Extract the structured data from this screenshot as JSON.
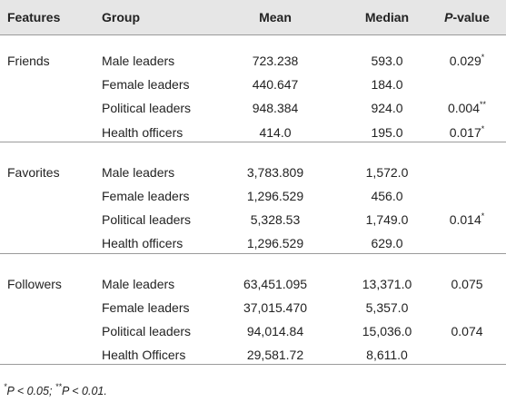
{
  "table": {
    "header": [
      "Features",
      "Group",
      "Mean",
      "Median",
      {
        "italic": "P",
        "rest": "-value"
      }
    ],
    "groups": [
      {
        "feature": "Friends",
        "rows": [
          {
            "group": "Male leaders",
            "mean": "723.238",
            "median": "593.0",
            "p": {
              "text": "0.029",
              "sup": "*"
            }
          },
          {
            "group": "Female leaders",
            "mean": "440.647",
            "median": "184.0"
          },
          {
            "group": "Political leaders",
            "mean": "948.384",
            "median": "924.0",
            "p": {
              "text": "0.004",
              "sup": "**"
            }
          },
          {
            "group": "Health officers",
            "mean": "414.0",
            "median": "195.0",
            "p": {
              "text": "0.017",
              "sup": "*"
            }
          }
        ]
      },
      {
        "feature": "Favorites",
        "rows": [
          {
            "group": "Male leaders",
            "mean": "3,783.809",
            "median": "1,572.0"
          },
          {
            "group": "Female leaders",
            "mean": "1,296.529",
            "median": "456.0"
          },
          {
            "group": "Political leaders",
            "mean": "5,328.53",
            "median": "1,749.0",
            "p": {
              "text": "0.014",
              "sup": "*"
            }
          },
          {
            "group": "Health officers",
            "mean": "1,296.529",
            "median": "629.0"
          }
        ]
      },
      {
        "feature": "Followers",
        "rows": [
          {
            "group": "Male leaders",
            "mean": "63,451.095",
            "median": "13,371.0",
            "p": {
              "text": "0.075"
            }
          },
          {
            "group": "Female leaders",
            "mean": "37,015.470",
            "median": "5,357.0"
          },
          {
            "group": "Political leaders",
            "mean": "94,014.84",
            "median": "15,036.0",
            "p": {
              "text": "0.074"
            }
          },
          {
            "group": "Health Officers",
            "mean": "29,581.72",
            "median": "8,611.0"
          }
        ]
      }
    ],
    "footnote": [
      {
        "sup": "*"
      },
      {
        "text": "P < 0.05; "
      },
      {
        "sup": "**"
      },
      {
        "text": "P < 0.01."
      }
    ]
  }
}
